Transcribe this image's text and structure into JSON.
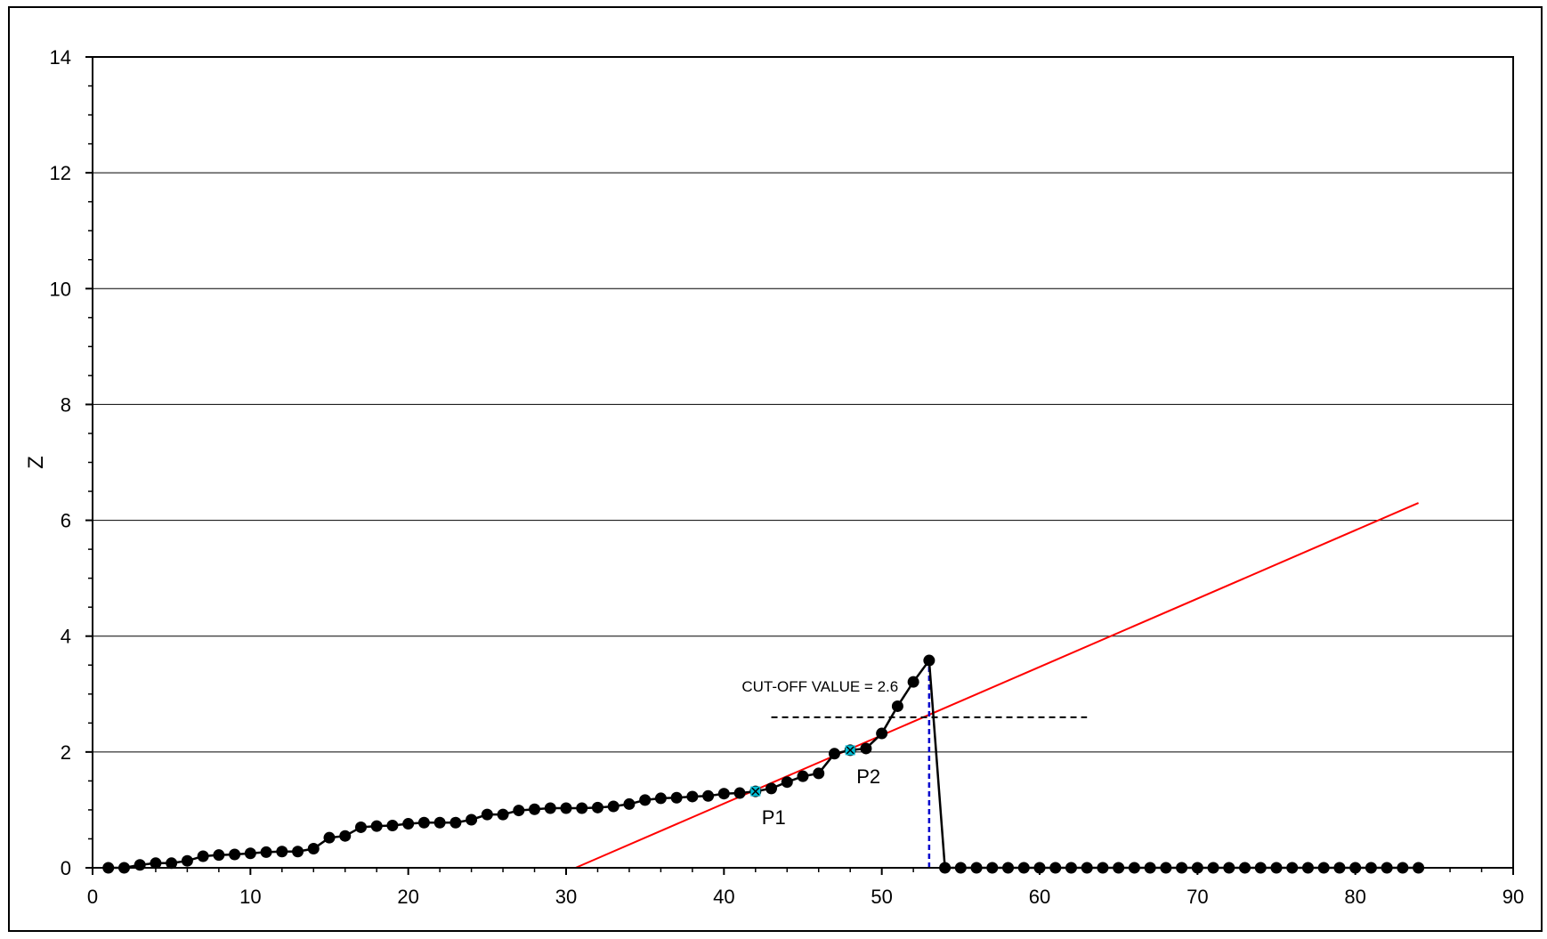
{
  "chart_data": {
    "type": "line",
    "title": "",
    "xlabel": "",
    "ylabel": "Z",
    "xlim": [
      0,
      90
    ],
    "ylim": [
      0,
      14
    ],
    "x_ticks": [
      0,
      10,
      20,
      30,
      40,
      50,
      60,
      70,
      80,
      90
    ],
    "y_ticks": [
      0,
      2,
      4,
      6,
      8,
      10,
      12,
      14
    ],
    "x_tick_labels": [
      "0",
      "10",
      "20",
      "30",
      "40",
      "50",
      "60",
      "70",
      "80",
      "90"
    ],
    "y_tick_labels": [
      "0",
      "2",
      "4",
      "6",
      "8",
      "10",
      "12",
      "14"
    ],
    "grid": "horizontal",
    "series": [
      {
        "color": "#000000",
        "marker": "circle",
        "x": [
          1,
          2,
          3,
          4,
          5,
          6,
          7,
          8,
          9,
          10,
          11,
          12,
          13,
          14,
          15,
          16,
          17,
          18,
          19,
          20,
          21,
          22,
          23,
          24,
          25,
          26,
          27,
          28,
          29,
          30,
          31,
          32,
          33,
          34,
          35,
          36,
          37,
          38,
          39,
          40,
          41,
          42,
          43,
          44,
          45,
          46,
          47,
          48,
          49,
          50,
          51,
          52,
          53,
          54,
          55,
          56,
          57,
          58,
          59,
          60,
          61,
          62,
          63,
          64,
          65,
          66,
          67,
          68,
          69,
          70,
          71,
          72,
          73,
          74,
          75,
          76,
          77,
          78,
          79,
          80,
          81,
          82,
          83,
          84
        ],
        "y": [
          0,
          0,
          0.05,
          0.08,
          0.08,
          0.12,
          0.2,
          0.22,
          0.23,
          0.25,
          0.27,
          0.28,
          0.28,
          0.33,
          0.52,
          0.55,
          0.7,
          0.72,
          0.73,
          0.76,
          0.78,
          0.78,
          0.78,
          0.83,
          0.92,
          0.92,
          0.99,
          1.01,
          1.03,
          1.03,
          1.03,
          1.04,
          1.06,
          1.1,
          1.17,
          1.2,
          1.21,
          1.23,
          1.24,
          1.28,
          1.29,
          1.32,
          1.37,
          1.48,
          1.58,
          1.63,
          1.97,
          2.03,
          2.06,
          2.32,
          2.79,
          3.21,
          3.58,
          0,
          0,
          0,
          0,
          0,
          0,
          0,
          0,
          0,
          0,
          0,
          0,
          0,
          0,
          0,
          0,
          0,
          0,
          0,
          0,
          0,
          0,
          0,
          0,
          0,
          0,
          0,
          0,
          0,
          0,
          0
        ]
      }
    ],
    "regression_line": {
      "color": "#ff0000",
      "x": [
        30.6,
        84.0
      ],
      "y": [
        0,
        6.3
      ]
    },
    "cutoff_line": {
      "color": "#000000",
      "style": "dashed",
      "x": [
        43,
        63
      ],
      "y": 2.6
    },
    "vertical_marker": {
      "color": "#0000cc",
      "style": "dashed",
      "x": 53,
      "y": [
        0,
        3.58
      ]
    },
    "highlight_points": [
      {
        "label": "P1",
        "x": 42,
        "y": 1.32,
        "color": "#00bcd4"
      },
      {
        "label": "P2",
        "x": 48,
        "y": 2.03,
        "color": "#00bcd4"
      }
    ],
    "annotations": [
      {
        "text": "CUT-OFF VALUE = 2.6",
        "x": 40,
        "y": 3.15
      }
    ]
  }
}
